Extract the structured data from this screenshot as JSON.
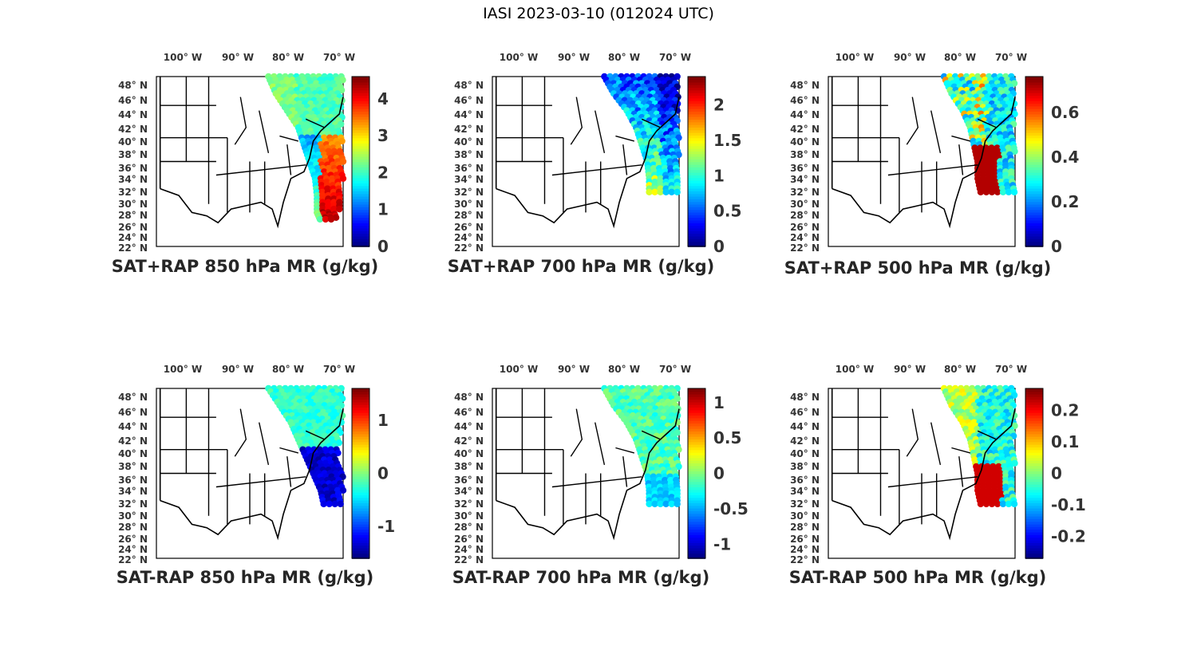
{
  "title": "IASI 2023-03-10 (012024 UTC)",
  "lon_labels": [
    "100",
    "90",
    "80",
    "70"
  ],
  "lon_hem": "W",
  "lat_labels": [
    "48",
    "46",
    "44",
    "42",
    "40",
    "38",
    "36",
    "34",
    "32",
    "30",
    "28",
    "26",
    "24",
    "22"
  ],
  "lat_hem": "N",
  "degree_symbol": "°",
  "colormap": "jet",
  "panels": [
    {
      "id": "sat-rap-sum-850",
      "title": "SAT+RAP 850 hPa MR (g/kg)",
      "cmin": 0,
      "cmax": 4.6,
      "ticks": [
        "0",
        "1",
        "2",
        "3",
        "4"
      ],
      "tick_values": [
        0,
        1,
        2,
        3,
        4
      ],
      "swath": "s1",
      "pattern": "sum850"
    },
    {
      "id": "sat-rap-sum-700",
      "title": "SAT+RAP 700 hPa MR (g/kg)",
      "cmin": 0,
      "cmax": 2.4,
      "ticks": [
        "0",
        "0.5",
        "1",
        "1.5",
        "2"
      ],
      "tick_values": [
        0,
        0.5,
        1,
        1.5,
        2
      ],
      "swath": "s2",
      "pattern": "sum700"
    },
    {
      "id": "sat-rap-sum-500",
      "title": "SAT+RAP 500 hPa MR (g/kg)",
      "cmin": 0,
      "cmax": 0.76,
      "ticks": [
        "0",
        "0.2",
        "0.4",
        "0.6"
      ],
      "tick_values": [
        0,
        0.2,
        0.4,
        0.6
      ],
      "swath": "s3",
      "pattern": "sum500"
    },
    {
      "id": "sat-rap-diff-850",
      "title": "SAT-RAP 850 hPa MR (g/kg)",
      "cmin": -1.6,
      "cmax": 1.6,
      "ticks": [
        "-1",
        "0",
        "1"
      ],
      "tick_values": [
        -1,
        0,
        1
      ],
      "swath": "s4",
      "pattern": "diff850"
    },
    {
      "id": "sat-rap-diff-700",
      "title": "SAT-RAP 700 hPa MR (g/kg)",
      "cmin": -1.2,
      "cmax": 1.2,
      "ticks": [
        "-1",
        "-0.5",
        "0",
        "0.5",
        "1"
      ],
      "tick_values": [
        -1,
        -0.5,
        0,
        0.5,
        1
      ],
      "swath": "s2",
      "pattern": "diff700"
    },
    {
      "id": "sat-rap-diff-500",
      "title": "SAT-RAP 500 hPa MR (g/kg)",
      "cmin": -0.27,
      "cmax": 0.27,
      "ticks": [
        "-0.2",
        "-0.1",
        "0",
        "0.1",
        "0.2"
      ],
      "tick_values": [
        -0.2,
        -0.1,
        0,
        0.1,
        0.2
      ],
      "swath": "s3",
      "pattern": "diff500"
    }
  ]
}
